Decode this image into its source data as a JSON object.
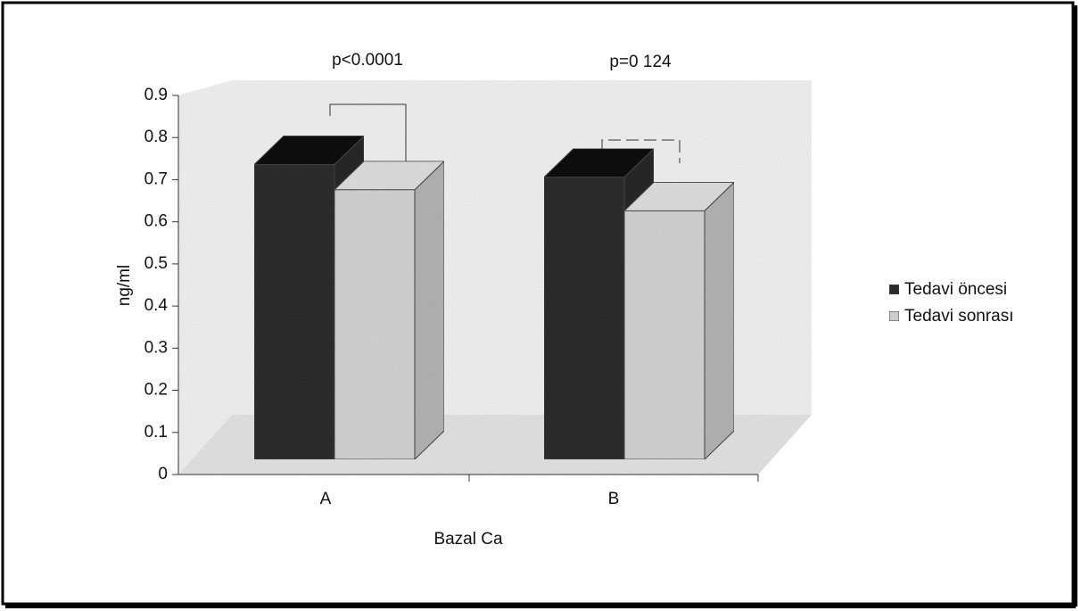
{
  "chart_data": {
    "type": "bar3d",
    "xlabel": "Bazal Ca",
    "ylabel": "ng/ml",
    "categories": [
      "A",
      "B"
    ],
    "series": [
      {
        "name": "Tedavi öncesi",
        "color": "#2e2e2e",
        "values": [
          0.7,
          0.67
        ]
      },
      {
        "name": "Tedavi sonrası",
        "color": "#d4d4d4",
        "values": [
          0.64,
          0.59
        ]
      }
    ],
    "annotations": [
      "p<0.0001",
      "p=0 124"
    ],
    "ylim": [
      0,
      0.9
    ],
    "yticks": [
      0,
      0.1,
      0.2,
      0.3,
      0.4,
      0.5,
      0.6,
      0.7,
      0.8,
      0.9
    ],
    "legend": "right"
  }
}
